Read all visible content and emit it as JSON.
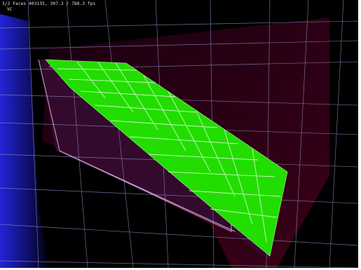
{
  "hud": {
    "status_line": "3/2 Faces 403135, 307.3 / 788.3 fps",
    "mode_label": "VC"
  },
  "colors": {
    "background": "#000000",
    "surface_fill": "#22dd00",
    "surface_wire": "#e8e8d0",
    "wireframe": "#c8a8d0",
    "floor_grid": "#8888cc",
    "floor_blue": "#2020c0",
    "far_plane": "#2a0014",
    "side_plane": "#3a0a2a"
  },
  "icons": {
    "surface": "green-surface-mesh",
    "box": "wireframe-box",
    "grid": "floor-grid"
  }
}
